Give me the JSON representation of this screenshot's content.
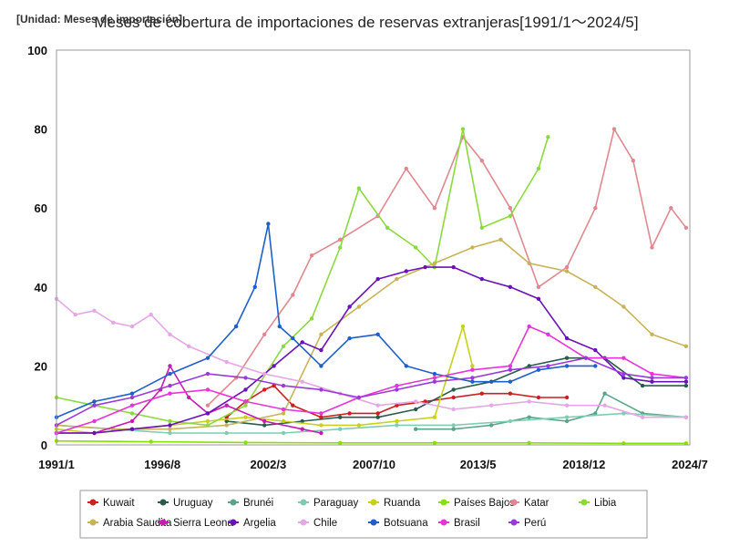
{
  "chart_data": {
    "type": "line",
    "title": "Meses de cobertura de importaciones de reservas extranjeras[1991/1～2024/5]",
    "unit_label": "[Unidad: Meses de importación]",
    "xlabel": "",
    "ylabel": "",
    "ylim": [
      0,
      100
    ],
    "xlim": [
      1991.0,
      2024.5
    ],
    "y_ticks": [
      0,
      20,
      40,
      60,
      80,
      100
    ],
    "y_tick_labels": [
      "0",
      "20",
      "40",
      "60",
      "80",
      "100"
    ],
    "x_ticks": [
      1991.0,
      1996.6,
      2002.2,
      2007.8,
      2013.3,
      2018.9,
      2024.5
    ],
    "x_tick_labels": [
      "1991/1",
      "1996/8",
      "2002/3",
      "2007/10",
      "2013/5",
      "2018/12",
      "2024/7"
    ],
    "grid": false,
    "legend_position": "bottom",
    "series": [
      {
        "name": "Kuwait",
        "color": "#cc1f1f",
        "x": [
          2000.0,
          2001.0,
          2002.0,
          2002.5,
          2003.5,
          2005.0,
          2006.5,
          2008.0,
          2009.0,
          2010.5,
          2012.0,
          2013.5,
          2015.0,
          2016.5,
          2018.0
        ],
        "y": [
          7,
          11,
          14,
          15,
          10,
          7,
          8,
          8,
          10,
          11,
          12,
          13,
          13,
          12,
          12
        ]
      },
      {
        "name": "Uruguay",
        "color": "#2a5b4c",
        "x": [
          2000.0,
          2002.0,
          2004.0,
          2006.0,
          2008.0,
          2010.0,
          2012.0,
          2014.0,
          2016.0,
          2018.0,
          2020.0,
          2022.0,
          2024.3
        ],
        "y": [
          6,
          5,
          6,
          7,
          7,
          9,
          14,
          16,
          20,
          22,
          22,
          15,
          15
        ]
      },
      {
        "name": "Brunéi",
        "color": "#5aa58a",
        "x": [
          2010.0,
          2012.0,
          2014.0,
          2016.0,
          2018.0,
          2019.5,
          2020.0,
          2022.0,
          2024.3
        ],
        "y": [
          4,
          4,
          5,
          7,
          6,
          8,
          13,
          8,
          7
        ]
      },
      {
        "name": "Paraguay",
        "color": "#7fcdb0",
        "x": [
          1991.0,
          1994.0,
          1997.0,
          2000.0,
          2003.0,
          2006.0,
          2009.0,
          2012.0,
          2015.0,
          2018.0,
          2021.0,
          2024.3
        ],
        "y": [
          5,
          4,
          3,
          3,
          3,
          4,
          5,
          5,
          6,
          7,
          8,
          7
        ]
      },
      {
        "name": "Ruanda",
        "color": "#c7d11b",
        "x": [
          1991.0,
          1993.0,
          1995.0,
          1997.0,
          1999.0,
          2001.0,
          2003.0,
          2005.0,
          2007.0,
          2009.0,
          2011.0,
          2012.5,
          2013.0
        ],
        "y": [
          4,
          3,
          4,
          5,
          6,
          7,
          6,
          5,
          5,
          6,
          7,
          30,
          20
        ]
      },
      {
        "name": "Países Bajos",
        "color": "#88e000",
        "x": [
          1991.0,
          1996.0,
          2001.0,
          2006.0,
          2011.0,
          2016.0,
          2021.0,
          2024.3
        ],
        "y": [
          1,
          0.8,
          0.6,
          0.5,
          0.5,
          0.5,
          0.4,
          0.4
        ]
      },
      {
        "name": "Katar",
        "color": "#e08890",
        "x": [
          1999.0,
          2000.5,
          2002.0,
          2003.5,
          2004.5,
          2006.0,
          2008.0,
          2009.5,
          2011.0,
          2012.5,
          2013.5,
          2015.0,
          2016.5,
          2018.0,
          2019.5,
          2020.5,
          2021.5,
          2022.5,
          2023.5,
          2024.3
        ],
        "y": [
          10,
          17,
          28,
          38,
          48,
          52,
          58,
          70,
          60,
          78,
          72,
          60,
          40,
          45,
          60,
          80,
          72,
          50,
          60,
          55
        ]
      },
      {
        "name": "Libia",
        "color": "#8cd93e",
        "x": [
          1991.0,
          1993.0,
          1995.0,
          1997.0,
          1999.0,
          2001.0,
          2003.0,
          2004.5,
          2006.0,
          2007.0,
          2008.5,
          2010.0,
          2011.0,
          2012.5,
          2013.5,
          2015.0,
          2016.5,
          2017.0
        ],
        "y": [
          12,
          10,
          8,
          6,
          5,
          10,
          25,
          32,
          50,
          65,
          55,
          50,
          45,
          80,
          55,
          58,
          70,
          78
        ]
      },
      {
        "name": "Arabia Saudita",
        "color": "#c7b45a",
        "x": [
          1991.0,
          1994.0,
          1997.0,
          2000.0,
          2003.0,
          2005.0,
          2007.0,
          2009.0,
          2011.0,
          2013.0,
          2014.5,
          2016.0,
          2018.0,
          2019.5,
          2021.0,
          2022.5,
          2024.3
        ],
        "y": [
          5,
          4,
          4,
          5,
          8,
          28,
          35,
          42,
          46,
          50,
          52,
          46,
          44,
          40,
          35,
          28,
          25
        ]
      },
      {
        "name": "Sierra Leona",
        "color": "#c81ab2",
        "x": [
          1991.0,
          1993.0,
          1995.0,
          1996.5,
          1997.0,
          1998.0,
          1999.0,
          2000.0,
          2002.0,
          2004.0,
          2005.0
        ],
        "y": [
          3,
          3,
          6,
          14,
          20,
          12,
          8,
          10,
          6,
          4,
          3
        ]
      },
      {
        "name": "Argelia",
        "color": "#6a12b8",
        "x": [
          1991.0,
          1993.0,
          1995.0,
          1997.0,
          1999.0,
          2001.0,
          2002.5,
          2004.0,
          2005.0,
          2006.5,
          2008.0,
          2009.5,
          2010.5,
          2012.0,
          2013.5,
          2015.0,
          2016.5,
          2018.0,
          2019.5,
          2021.0,
          2022.5,
          2024.3
        ],
        "y": [
          3,
          3,
          4,
          5,
          8,
          14,
          20,
          26,
          24,
          35,
          42,
          44,
          45,
          45,
          42,
          40,
          37,
          27,
          24,
          17,
          16,
          16
        ]
      },
      {
        "name": "Chile",
        "color": "#e4a8e4",
        "x": [
          1991.0,
          1992.0,
          1993.0,
          1994.0,
          1995.0,
          1996.0,
          1997.0,
          1998.0,
          2000.0,
          2002.0,
          2004.0,
          2006.0,
          2008.0,
          2010.0,
          2012.0,
          2014.0,
          2016.0,
          2018.0,
          2020.0,
          2022.0,
          2024.3
        ],
        "y": [
          37,
          33,
          34,
          31,
          30,
          33,
          28,
          25,
          21,
          18,
          16,
          13,
          10,
          11,
          9,
          10,
          11,
          10,
          10,
          7,
          7
        ]
      },
      {
        "name": "Botsuana",
        "color": "#1f5fcc",
        "x": [
          1991.0,
          1993.0,
          1995.0,
          1997.0,
          1999.0,
          2000.5,
          2001.5,
          2002.2,
          2002.8,
          2003.5,
          2005.0,
          2006.5,
          2008.0,
          2009.5,
          2011.0,
          2013.0,
          2015.0,
          2016.5,
          2018.0,
          2019.5
        ],
        "y": [
          7,
          11,
          13,
          18,
          22,
          30,
          40,
          56,
          30,
          27,
          20,
          27,
          28,
          20,
          18,
          16,
          16,
          19,
          20,
          20
        ]
      },
      {
        "name": "Brasil",
        "color": "#e833d8",
        "x": [
          1991.0,
          1993.0,
          1995.0,
          1997.0,
          1999.0,
          2001.0,
          2003.0,
          2005.0,
          2007.0,
          2009.0,
          2011.0,
          2013.0,
          2015.0,
          2016.0,
          2017.0,
          2019.0,
          2021.0,
          2022.5,
          2024.3
        ],
        "y": [
          3,
          6,
          10,
          13,
          14,
          11,
          9,
          8,
          12,
          15,
          17,
          19,
          20,
          30,
          28,
          22,
          22,
          18,
          17
        ]
      },
      {
        "name": "Perú",
        "color": "#9a3ad8",
        "x": [
          1991.0,
          1993.0,
          1995.0,
          1997.0,
          1999.0,
          2001.0,
          2003.0,
          2005.0,
          2007.0,
          2009.0,
          2011.0,
          2013.0,
          2015.0,
          2017.0,
          2019.0,
          2021.0,
          2022.5,
          2024.3
        ],
        "y": [
          5,
          10,
          12,
          15,
          18,
          17,
          15,
          14,
          12,
          14,
          16,
          17,
          19,
          20,
          22,
          18,
          17,
          17
        ]
      }
    ]
  }
}
